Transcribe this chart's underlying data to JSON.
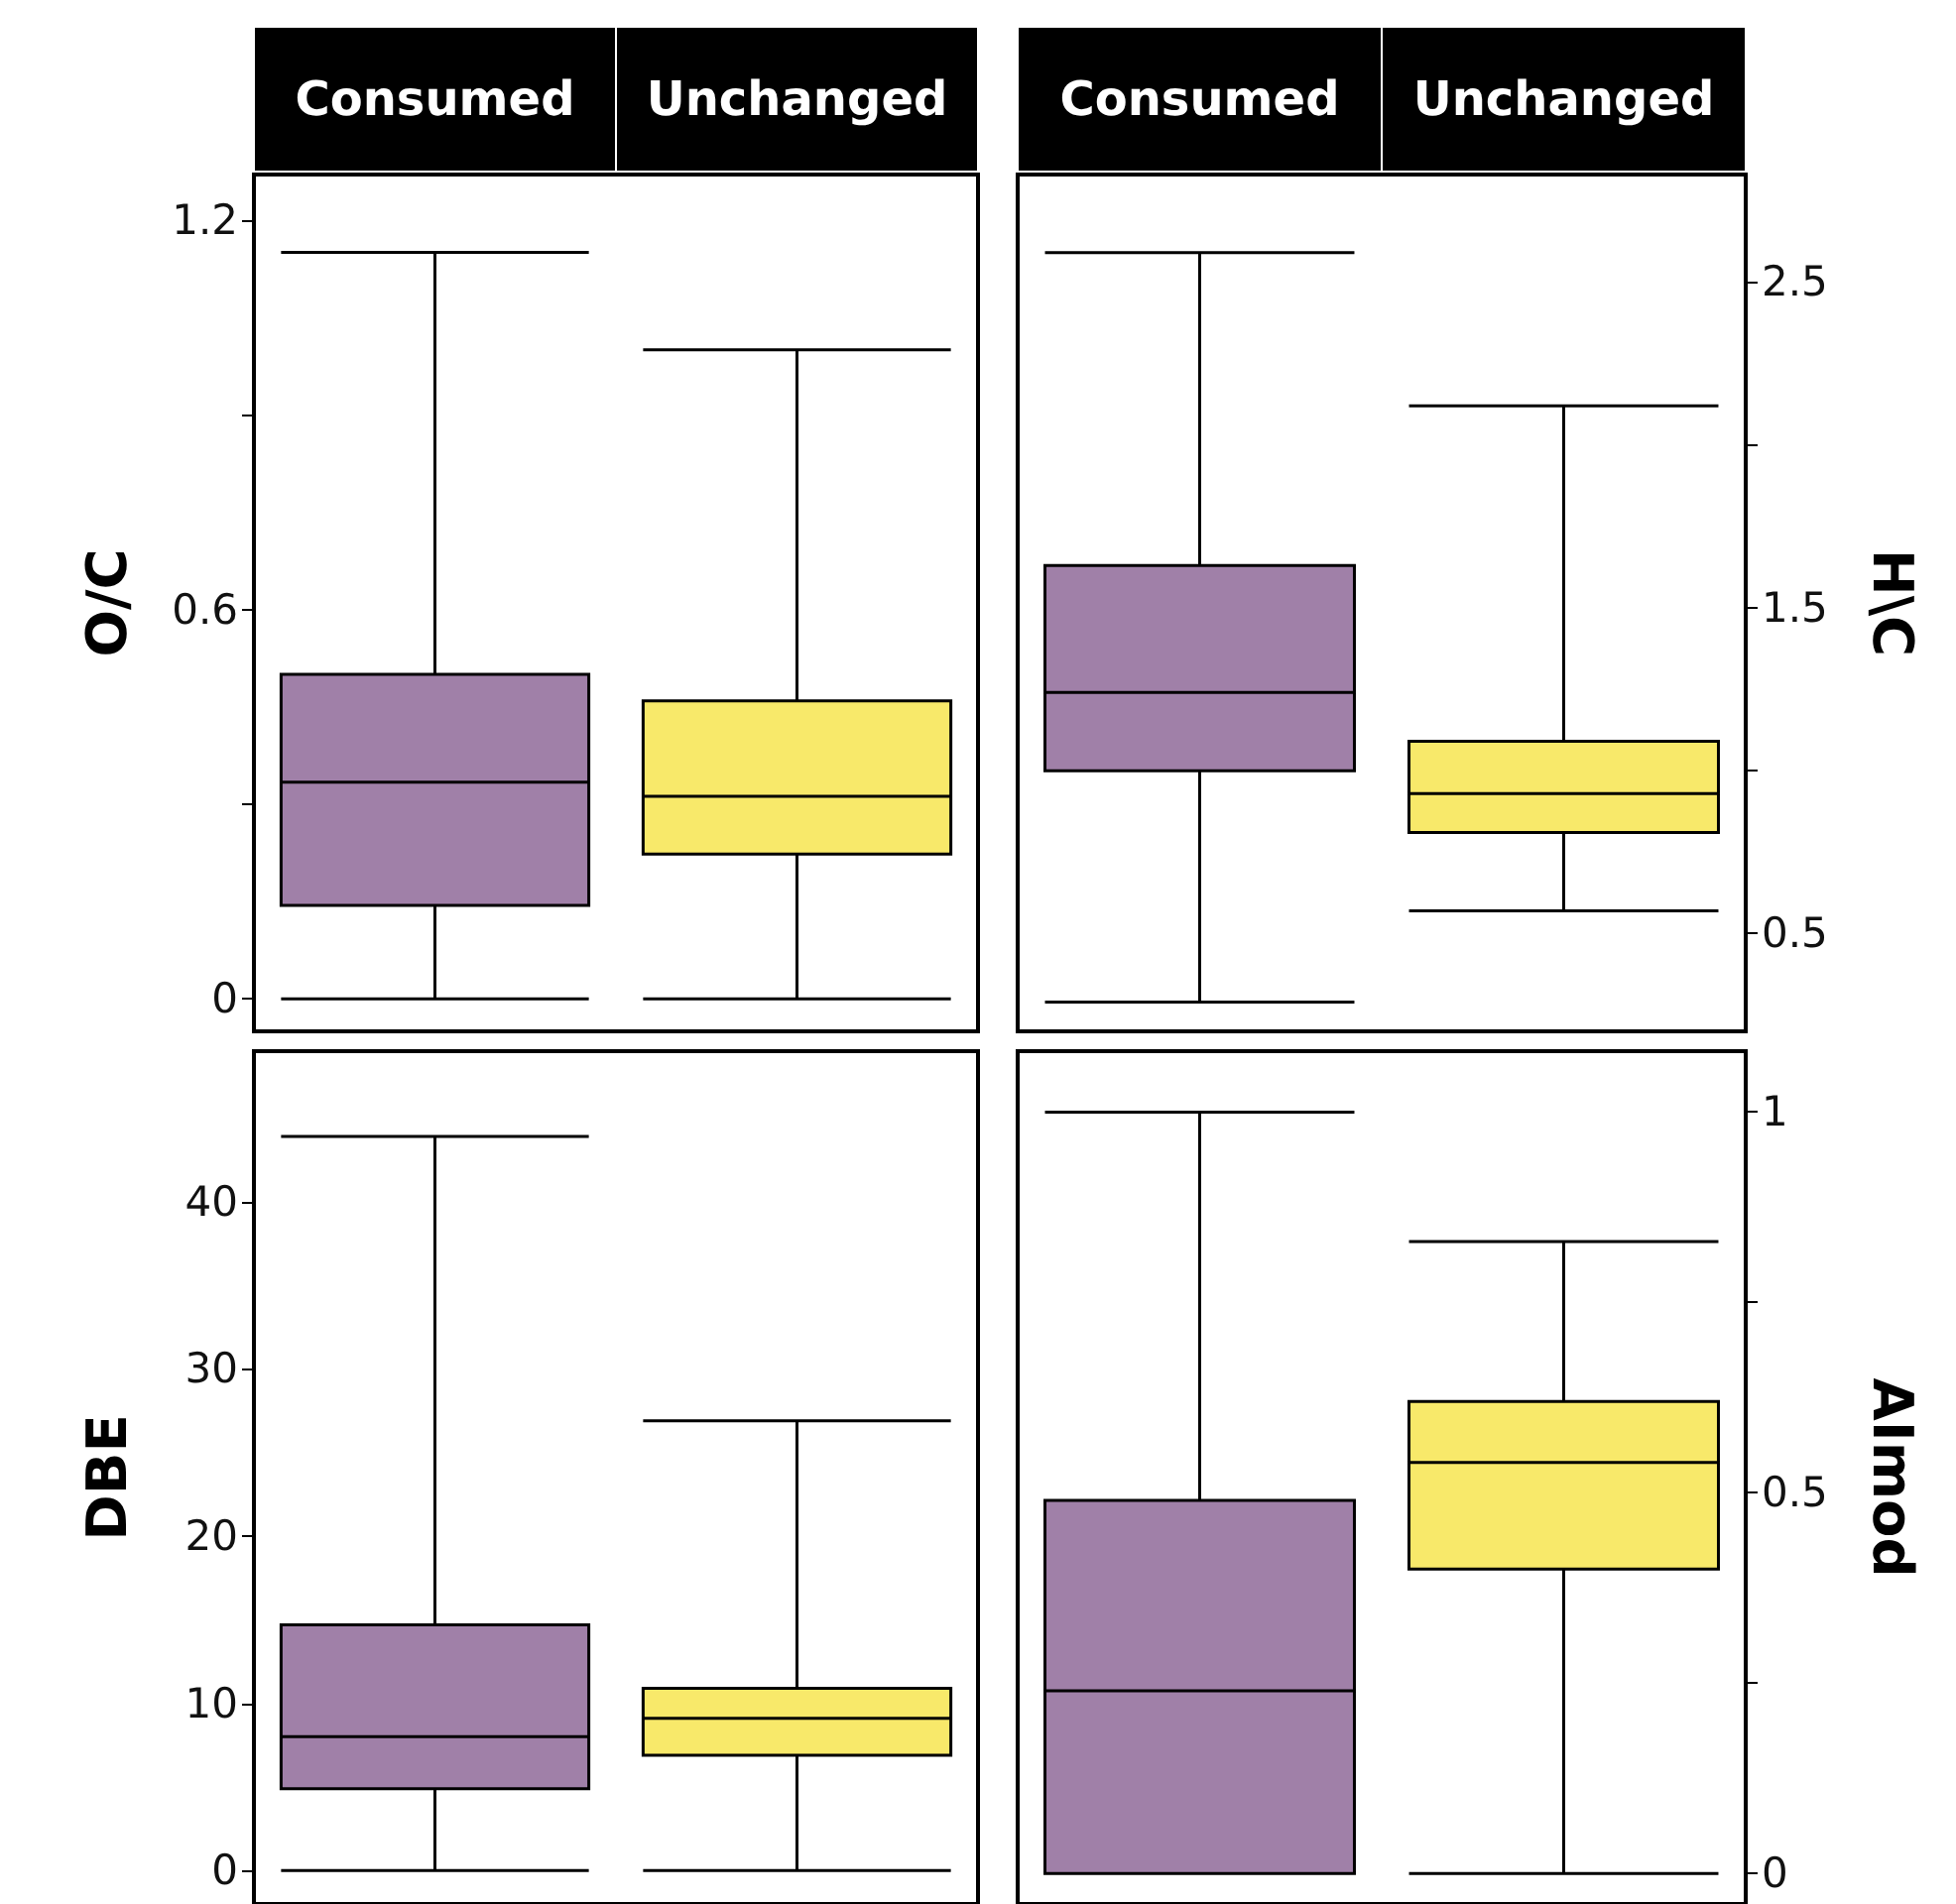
{
  "chart_data": [
    {
      "type": "box",
      "ylabel": "O/C",
      "categories": [
        "Consumed",
        "Unchanged"
      ],
      "colors": [
        "#a080a8",
        "#f8e96a"
      ],
      "boxes": [
        {
          "low": 0,
          "q1": 0.144,
          "median": 0.334,
          "q3": 0.5,
          "high": 1.15
        },
        {
          "low": 0,
          "q1": 0.223,
          "median": 0.312,
          "q3": 0.459,
          "high": 1.0
        }
      ],
      "ylim": [
        -0.05,
        1.27
      ],
      "yticks": [
        0,
        {
          "value": 0.3,
          "label": null
        },
        0.6,
        {
          "value": 0.9,
          "label": null
        },
        1.2
      ]
    },
    {
      "type": "box",
      "ylabel": "H\\C",
      "categories": [
        "Consumed",
        "Unchanged"
      ],
      "colors": [
        "#a080a8",
        "#f8e96a"
      ],
      "boxes": [
        {
          "low": 0.29,
          "q1": 1.0,
          "median": 1.24,
          "q3": 1.63,
          "high": 2.59
        },
        {
          "low": 0.57,
          "q1": 0.81,
          "median": 0.93,
          "q3": 1.09,
          "high": 2.12
        }
      ],
      "ylim": [
        0.2,
        2.83
      ],
      "yticks": [
        0.5,
        {
          "value": 1.0,
          "label": null
        },
        1.5,
        {
          "value": 2.0,
          "label": null
        },
        2.5
      ]
    },
    {
      "type": "box",
      "ylabel": "DBE",
      "categories": [
        null,
        null
      ],
      "colors": [
        "#a080a8",
        "#f8e96a"
      ],
      "tick_labels": "y",
      "boxes": [
        {
          "low": 0,
          "q1": 4.9,
          "median": 8.0,
          "q3": 14.7,
          "high": 43.9
        },
        {
          "low": 0,
          "q1": 6.9,
          "median": 9.1,
          "q3": 10.9,
          "high": 26.9
        }
      ],
      "ylim": [
        -2,
        49
      ],
      "yticks": [
        0,
        10,
        20,
        30,
        40
      ]
    },
    {
      "type": "box",
      "ylabel": "AImod",
      "categories": [
        null,
        null
      ],
      "colors": [
        "#a080a8",
        "#f8e96a"
      ],
      "tick_labels": "y",
      "boxes": [
        {
          "low": 0,
          "q1": 0,
          "median": 0.24,
          "q3": 0.49,
          "high": 1.0
        },
        {
          "low": 0,
          "q1": 0.4,
          "median": 0.54,
          "q3": 0.62,
          "high": 0.83
        }
      ],
      "ylim": [
        -0.04,
        1.08
      ],
      "yticks": [
        0,
        {
          "value": 0.25,
          "label": null
        },
        0.5,
        {
          "value": 0.75,
          "label": null
        },
        1
      ]
    }
  ]
}
